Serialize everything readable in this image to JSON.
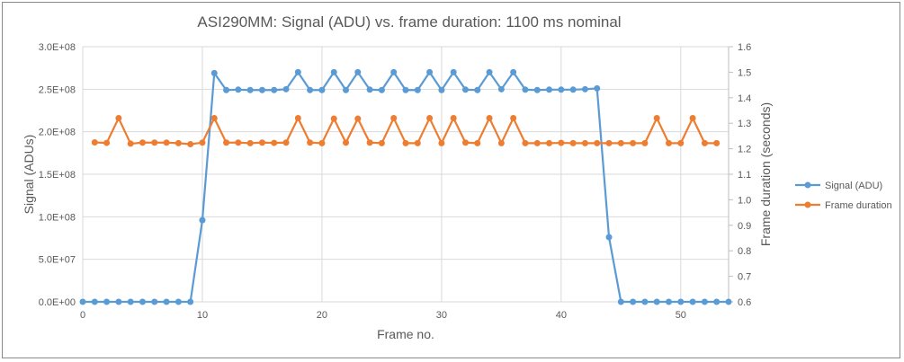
{
  "chart_data": {
    "type": "line",
    "title": "ASI290MM: Signal (ADU) vs. frame duration: 1100 ms nominal",
    "xlabel": "Frame no.",
    "ylabel": "Signal (ADUs)",
    "y2label": "Frame duration (seconds)",
    "xlim": [
      0,
      54
    ],
    "ylim": [
      0,
      300000000
    ],
    "y2lim": [
      0.6,
      1.6
    ],
    "x_ticks": [
      0,
      10,
      20,
      30,
      40,
      50
    ],
    "y_ticks": [
      "0.0E+00",
      "5.0E+07",
      "1.0E+08",
      "1.5E+08",
      "2.0E+08",
      "2.5E+08",
      "3.0E+08"
    ],
    "y2_ticks": [
      "0.6",
      "0.7",
      "0.8",
      "0.9",
      "1.0",
      "1.1",
      "1.2",
      "1.3",
      "1.4",
      "1.5",
      "1.6"
    ],
    "grid": true,
    "legend_position": "right",
    "series": [
      {
        "name": "Signal (ADU)",
        "axis": "left",
        "color": "#5b9bd5",
        "x": [
          0,
          1,
          2,
          3,
          4,
          5,
          6,
          7,
          8,
          9,
          10,
          11,
          12,
          13,
          14,
          15,
          16,
          17,
          18,
          19,
          20,
          21,
          22,
          23,
          24,
          25,
          26,
          27,
          28,
          29,
          30,
          31,
          32,
          33,
          34,
          35,
          36,
          37,
          38,
          39,
          40,
          41,
          42,
          43,
          44,
          45,
          46,
          47,
          48,
          49,
          50,
          51,
          52,
          53,
          54
        ],
        "values": [
          0,
          0,
          0,
          0,
          0,
          0,
          0,
          0,
          0,
          0,
          96000000,
          269000000,
          249000000,
          249500000,
          249000000,
          249000000,
          249000000,
          250000000,
          270000000,
          249000000,
          249000000,
          270000000,
          249000000,
          270000000,
          249500000,
          249000000,
          270000000,
          249000000,
          249000000,
          270000000,
          249000000,
          270000000,
          249500000,
          249000000,
          270000000,
          250000000,
          270000000,
          249500000,
          249000000,
          249500000,
          249500000,
          249500000,
          250000000,
          251000000,
          76000000,
          0,
          0,
          0,
          0,
          0,
          0,
          0,
          0,
          0,
          0
        ]
      },
      {
        "name": "Frame duration",
        "axis": "right",
        "color": "#ed7d31",
        "x": [
          1,
          2,
          3,
          4,
          5,
          6,
          7,
          8,
          9,
          10,
          11,
          12,
          13,
          14,
          15,
          16,
          17,
          18,
          19,
          20,
          21,
          22,
          23,
          24,
          25,
          26,
          27,
          28,
          29,
          30,
          31,
          32,
          33,
          34,
          35,
          36,
          37,
          38,
          39,
          40,
          41,
          42,
          43,
          44,
          45,
          46,
          47,
          48,
          49,
          50,
          51,
          52,
          53
        ],
        "values": [
          1.225,
          1.223,
          1.32,
          1.22,
          1.224,
          1.224,
          1.224,
          1.222,
          1.218,
          1.224,
          1.32,
          1.224,
          1.224,
          1.222,
          1.224,
          1.223,
          1.224,
          1.32,
          1.224,
          1.222,
          1.318,
          1.224,
          1.318,
          1.224,
          1.222,
          1.32,
          1.222,
          1.222,
          1.32,
          1.222,
          1.32,
          1.224,
          1.222,
          1.32,
          1.222,
          1.32,
          1.222,
          1.222,
          1.222,
          1.223,
          1.222,
          1.222,
          1.222,
          1.222,
          1.222,
          1.222,
          1.222,
          1.32,
          1.222,
          1.222,
          1.32,
          1.222,
          1.222
        ]
      }
    ]
  }
}
